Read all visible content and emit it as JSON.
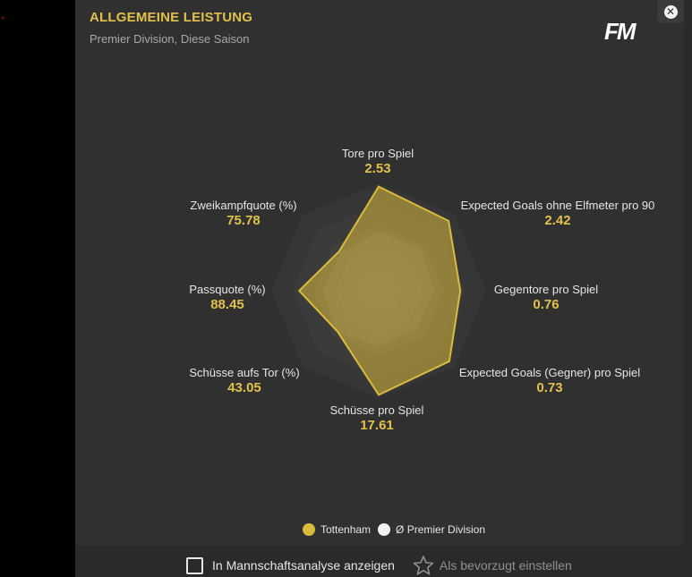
{
  "header": {
    "title": "ALLGEMEINE LEISTUNG",
    "subtitle": "Premier Division, Diese Saison",
    "logo_text": "FM",
    "close_icon": "close-icon"
  },
  "metrics": [
    {
      "label": "Tore pro Spiel",
      "value": "2.53"
    },
    {
      "label": "Expected Goals ohne Elfmeter pro 90",
      "value": "2.42"
    },
    {
      "label": "Gegentore pro Spiel",
      "value": "0.76"
    },
    {
      "label": "Expected Goals (Gegner) pro Spiel",
      "value": "0.73"
    },
    {
      "label": "Schüsse pro Spiel",
      "value": "17.61"
    },
    {
      "label": "Schüsse aufs Tor (%)",
      "value": "43.05"
    },
    {
      "label": "Passquote (%)",
      "value": "88.45"
    },
    {
      "label": "Zweikampfquote (%)",
      "value": "75.78"
    }
  ],
  "legend": {
    "team": {
      "label": "Tottenham",
      "color": "#d9bc3d"
    },
    "league": {
      "label": "Ø Premier Division",
      "color": "#f2f2f2"
    }
  },
  "footer": {
    "checkbox_label": "In Mannschaftsanalyse anzeigen",
    "favorite_label": "Als bevorzugt einstellen",
    "favorite_icon": "star-outline-icon"
  },
  "colors": {
    "accent": "#e1c14a",
    "panel": "#303030",
    "background": "#2a2a2a"
  }
}
